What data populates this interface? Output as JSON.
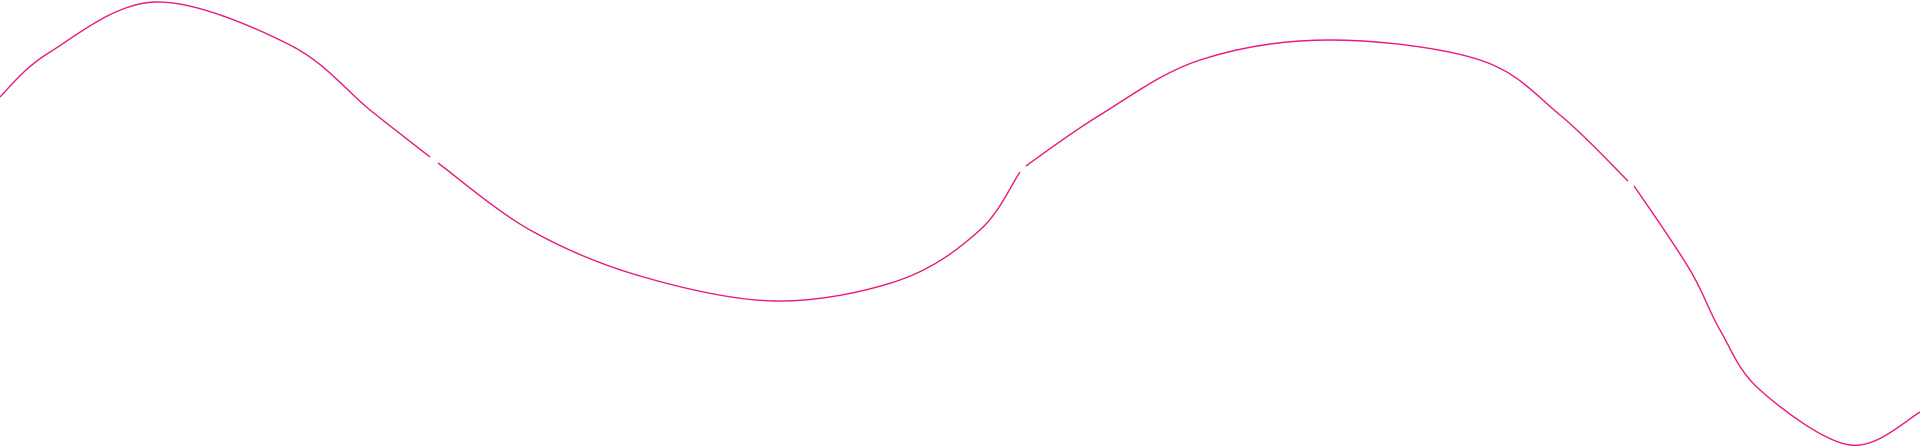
{
  "decoration": {
    "type": "wavy-line",
    "stroke_color": "#e8197f",
    "background_color": "#ffffff",
    "segments": 4
  }
}
